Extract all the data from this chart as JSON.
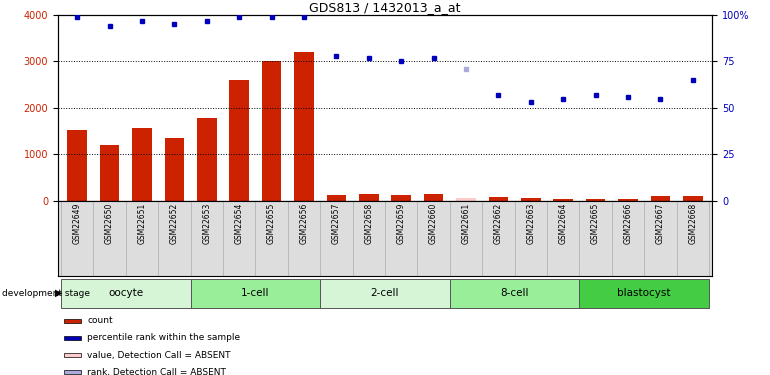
{
  "title": "GDS813 / 1432013_a_at",
  "samples": [
    "GSM22649",
    "GSM22650",
    "GSM22651",
    "GSM22652",
    "GSM22653",
    "GSM22654",
    "GSM22655",
    "GSM22656",
    "GSM22657",
    "GSM22658",
    "GSM22659",
    "GSM22660",
    "GSM22661",
    "GSM22662",
    "GSM22663",
    "GSM22664",
    "GSM22665",
    "GSM22666",
    "GSM22667",
    "GSM22668"
  ],
  "bar_values": [
    1520,
    1190,
    1570,
    1340,
    1780,
    2600,
    3010,
    3200,
    120,
    140,
    120,
    135,
    60,
    70,
    55,
    30,
    25,
    40,
    100,
    100
  ],
  "bar_absent": [
    false,
    false,
    false,
    false,
    false,
    false,
    false,
    false,
    false,
    false,
    false,
    false,
    true,
    false,
    false,
    false,
    false,
    false,
    false,
    false
  ],
  "rank_values": [
    99,
    94,
    97,
    95,
    97,
    99,
    99,
    99,
    78,
    77,
    75,
    77,
    71,
    57,
    53,
    55,
    57,
    56,
    55,
    65
  ],
  "rank_absent": [
    false,
    false,
    false,
    false,
    false,
    false,
    false,
    false,
    false,
    false,
    false,
    false,
    true,
    false,
    false,
    false,
    false,
    false,
    false,
    false
  ],
  "groups": [
    {
      "label": "oocyte",
      "start": 0,
      "end": 4,
      "color": "#d6f5d6"
    },
    {
      "label": "1-cell",
      "start": 4,
      "end": 8,
      "color": "#99ee99"
    },
    {
      "label": "2-cell",
      "start": 8,
      "end": 12,
      "color": "#d6f5d6"
    },
    {
      "label": "8-cell",
      "start": 12,
      "end": 16,
      "color": "#99ee99"
    },
    {
      "label": "blastocyst",
      "start": 16,
      "end": 20,
      "color": "#44cc44"
    }
  ],
  "bar_color": "#cc2200",
  "bar_absent_color": "#ffcccc",
  "rank_color": "#0000bb",
  "rank_absent_color": "#aaaadd",
  "ylim_left": [
    0,
    4000
  ],
  "ylim_right": [
    0,
    100
  ],
  "yticks_left": [
    0,
    1000,
    2000,
    3000,
    4000
  ],
  "yticks_right": [
    0,
    25,
    50,
    75,
    100
  ],
  "yticklabels_right": [
    "0",
    "25",
    "50",
    "75",
    "100%"
  ],
  "grid_values": [
    1000,
    2000,
    3000
  ],
  "legend_items": [
    {
      "color": "#cc2200",
      "label": "count"
    },
    {
      "color": "#0000bb",
      "label": "percentile rank within the sample"
    },
    {
      "color": "#ffcccc",
      "label": "value, Detection Call = ABSENT"
    },
    {
      "color": "#aaaadd",
      "label": "rank, Detection Call = ABSENT"
    }
  ]
}
